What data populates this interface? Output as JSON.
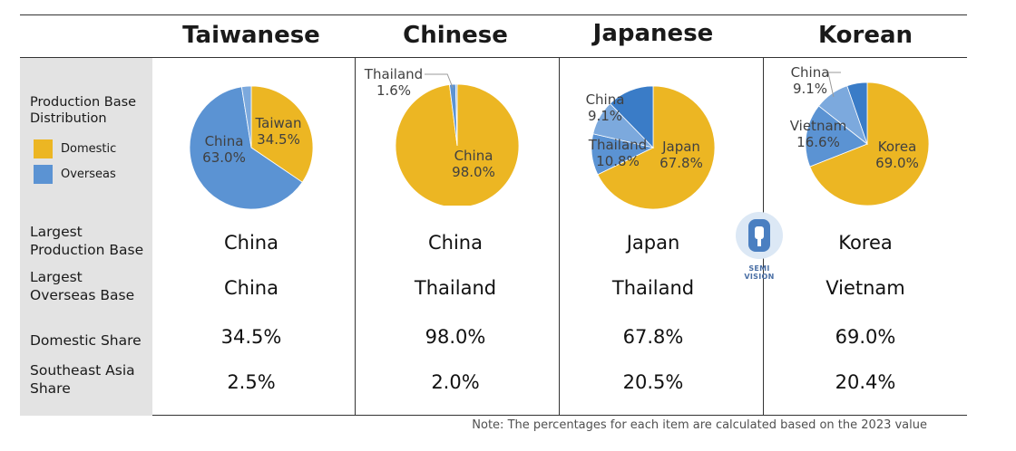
{
  "colors": {
    "domestic": "#ecb623",
    "overseas": "#5b93d3"
  },
  "columns": [
    {
      "header": "Taiwanese",
      "largest_production_base": "China",
      "largest_overseas_base": "China",
      "domestic_share": "34.5%",
      "southeast_asia_share": "2.5%"
    },
    {
      "header": "Chinese",
      "largest_production_base": "China",
      "largest_overseas_base": "Thailand",
      "domestic_share": "98.0%",
      "southeast_asia_share": "2.0%"
    },
    {
      "header": "Japanese",
      "largest_production_base": "Japan",
      "largest_overseas_base": "Thailand",
      "domestic_share": "67.8%",
      "southeast_asia_share": "20.5%"
    },
    {
      "header": "Korean",
      "largest_production_base": "Korea",
      "largest_overseas_base": "Vietnam",
      "domestic_share": "69.0%",
      "southeast_asia_share": "20.4%"
    }
  ],
  "row_labels": {
    "production_base_distribution": "Production Base Distribution",
    "largest_production_base": "Largest Production Base",
    "largest_overseas_base": "Largest Overseas Base",
    "domestic_share": "Domestic Share",
    "southeast_asia_share": "Southeast Asia Share"
  },
  "legend": {
    "domestic": "Domestic",
    "overseas": "Overseas"
  },
  "note": "Note: The percentages for each item are calculated based on the 2023 value",
  "watermark": "SEMI VISION",
  "chart_data": [
    {
      "type": "pie",
      "group": "Taiwanese",
      "slices": [
        {
          "label": "Taiwan",
          "value": 34.5,
          "category": "domestic",
          "display": "34.5%"
        },
        {
          "label": "China",
          "value": 63.0,
          "category": "overseas",
          "display": "63.0%"
        },
        {
          "label": "",
          "value": 2.5,
          "category": "overseas",
          "display": ""
        }
      ]
    },
    {
      "type": "pie",
      "group": "Chinese",
      "slices": [
        {
          "label": "China",
          "value": 98.0,
          "category": "domestic",
          "display": "98.0%"
        },
        {
          "label": "Thailand",
          "value": 1.6,
          "category": "overseas",
          "display": "1.6%"
        },
        {
          "label": "",
          "value": 0.4,
          "category": "overseas",
          "display": ""
        }
      ]
    },
    {
      "type": "pie",
      "group": "Japanese",
      "slices": [
        {
          "label": "Japan",
          "value": 67.8,
          "category": "domestic",
          "display": "67.8%"
        },
        {
          "label": "Thailand",
          "value": 10.8,
          "category": "overseas",
          "display": "10.8%"
        },
        {
          "label": "China",
          "value": 9.1,
          "category": "overseas",
          "display": "9.1%"
        },
        {
          "label": "",
          "value": 12.3,
          "category": "overseas",
          "display": ""
        }
      ]
    },
    {
      "type": "pie",
      "group": "Korean",
      "slices": [
        {
          "label": "Korea",
          "value": 69.0,
          "category": "domestic",
          "display": "69.0%"
        },
        {
          "label": "Vietnam",
          "value": 16.6,
          "category": "overseas",
          "display": "16.6%"
        },
        {
          "label": "China",
          "value": 9.1,
          "category": "overseas",
          "display": "9.1%"
        },
        {
          "label": "",
          "value": 5.3,
          "category": "overseas",
          "display": ""
        }
      ]
    }
  ]
}
